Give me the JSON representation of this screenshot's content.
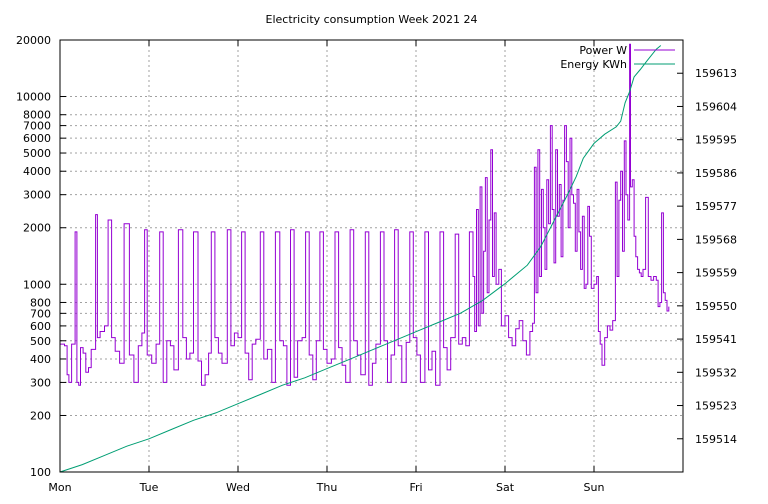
{
  "chart_data": {
    "type": "line",
    "title": "Electricity consumption Week 2021 24",
    "xlabel": "",
    "ylabel": "",
    "y2label": "",
    "grid": true,
    "legend_position": "top-right",
    "x_categories": [
      "Mon",
      "Tue",
      "Wed",
      "Thu",
      "Fri",
      "Sat",
      "Sun"
    ],
    "x_range_days": [
      0,
      7
    ],
    "y_scale": "log",
    "ylim": [
      100,
      20000
    ],
    "y_ticks": [
      100,
      200,
      300,
      400,
      500,
      600,
      700,
      800,
      1000,
      2000,
      3000,
      4000,
      5000,
      6000,
      7000,
      8000,
      10000,
      20000
    ],
    "y2_scale": "linear",
    "y2lim": [
      159505,
      159622
    ],
    "y2_ticks": [
      159514,
      159523,
      159532,
      159541,
      159550,
      159559,
      159568,
      159577,
      159586,
      159595,
      159604,
      159613
    ],
    "series": [
      {
        "name": "Power W",
        "axis": "y",
        "color": "#9400d3",
        "points": [
          [
            0.0,
            480
          ],
          [
            0.05,
            470
          ],
          [
            0.08,
            330
          ],
          [
            0.1,
            300
          ],
          [
            0.13,
            480
          ],
          [
            0.17,
            1900
          ],
          [
            0.19,
            300
          ],
          [
            0.21,
            290
          ],
          [
            0.23,
            460
          ],
          [
            0.26,
            430
          ],
          [
            0.29,
            340
          ],
          [
            0.32,
            360
          ],
          [
            0.35,
            450
          ],
          [
            0.4,
            2350
          ],
          [
            0.42,
            520
          ],
          [
            0.45,
            560
          ],
          [
            0.5,
            600
          ],
          [
            0.54,
            2200
          ],
          [
            0.58,
            520
          ],
          [
            0.62,
            440
          ],
          [
            0.67,
            380
          ],
          [
            0.72,
            2100
          ],
          [
            0.78,
            420
          ],
          [
            0.83,
            300
          ],
          [
            0.88,
            470
          ],
          [
            0.92,
            550
          ],
          [
            0.95,
            1950
          ],
          [
            0.98,
            420
          ],
          [
            1.03,
            380
          ],
          [
            1.08,
            480
          ],
          [
            1.12,
            1900
          ],
          [
            1.16,
            300
          ],
          [
            1.2,
            500
          ],
          [
            1.24,
            470
          ],
          [
            1.28,
            350
          ],
          [
            1.33,
            1950
          ],
          [
            1.38,
            520
          ],
          [
            1.42,
            400
          ],
          [
            1.46,
            430
          ],
          [
            1.5,
            1900
          ],
          [
            1.55,
            390
          ],
          [
            1.59,
            290
          ],
          [
            1.63,
            330
          ],
          [
            1.67,
            430
          ],
          [
            1.7,
            1900
          ],
          [
            1.74,
            520
          ],
          [
            1.78,
            430
          ],
          [
            1.82,
            380
          ],
          [
            1.88,
            1950
          ],
          [
            1.92,
            470
          ],
          [
            1.96,
            550
          ],
          [
            2.0,
            520
          ],
          [
            2.04,
            1900
          ],
          [
            2.08,
            430
          ],
          [
            2.12,
            310
          ],
          [
            2.16,
            480
          ],
          [
            2.2,
            510
          ],
          [
            2.25,
            1900
          ],
          [
            2.29,
            400
          ],
          [
            2.33,
            450
          ],
          [
            2.38,
            300
          ],
          [
            2.42,
            1900
          ],
          [
            2.47,
            500
          ],
          [
            2.51,
            470
          ],
          [
            2.55,
            290
          ],
          [
            2.59,
            1950
          ],
          [
            2.63,
            320
          ],
          [
            2.67,
            500
          ],
          [
            2.72,
            520
          ],
          [
            2.76,
            1900
          ],
          [
            2.8,
            420
          ],
          [
            2.84,
            310
          ],
          [
            2.88,
            500
          ],
          [
            2.92,
            1900
          ],
          [
            2.96,
            450
          ],
          [
            3.0,
            380
          ],
          [
            3.05,
            400
          ],
          [
            3.09,
            1900
          ],
          [
            3.13,
            460
          ],
          [
            3.17,
            370
          ],
          [
            3.21,
            300
          ],
          [
            3.26,
            1950
          ],
          [
            3.3,
            500
          ],
          [
            3.34,
            420
          ],
          [
            3.38,
            330
          ],
          [
            3.43,
            1900
          ],
          [
            3.47,
            290
          ],
          [
            3.51,
            380
          ],
          [
            3.55,
            480
          ],
          [
            3.6,
            1900
          ],
          [
            3.64,
            500
          ],
          [
            3.68,
            300
          ],
          [
            3.72,
            420
          ],
          [
            3.76,
            1950
          ],
          [
            3.8,
            470
          ],
          [
            3.84,
            300
          ],
          [
            3.89,
            490
          ],
          [
            3.93,
            1900
          ],
          [
            3.97,
            520
          ],
          [
            4.01,
            420
          ],
          [
            4.05,
            300
          ],
          [
            4.1,
            1900
          ],
          [
            4.14,
            350
          ],
          [
            4.18,
            440
          ],
          [
            4.22,
            290
          ],
          [
            4.27,
            1900
          ],
          [
            4.31,
            460
          ],
          [
            4.35,
            350
          ],
          [
            4.39,
            520
          ],
          [
            4.44,
            1850
          ],
          [
            4.48,
            480
          ],
          [
            4.52,
            520
          ],
          [
            4.56,
            470
          ],
          [
            4.6,
            1900
          ],
          [
            4.64,
            1100
          ],
          [
            4.66,
            560
          ],
          [
            4.68,
            2500
          ],
          [
            4.7,
            600
          ],
          [
            4.72,
            3300
          ],
          [
            4.74,
            700
          ],
          [
            4.76,
            1500
          ],
          [
            4.78,
            3700
          ],
          [
            4.8,
            900
          ],
          [
            4.82,
            2200
          ],
          [
            4.84,
            5200
          ],
          [
            4.86,
            1100
          ],
          [
            4.88,
            2400
          ],
          [
            4.9,
            1000
          ],
          [
            4.93,
            1200
          ],
          [
            4.96,
            600
          ],
          [
            5.0,
            680
          ],
          [
            5.04,
            520
          ],
          [
            5.08,
            470
          ],
          [
            5.12,
            580
          ],
          [
            5.16,
            640
          ],
          [
            5.2,
            500
          ],
          [
            5.24,
            420
          ],
          [
            5.28,
            560
          ],
          [
            5.31,
            620
          ],
          [
            5.33,
            4200
          ],
          [
            5.35,
            900
          ],
          [
            5.37,
            5200
          ],
          [
            5.39,
            1100
          ],
          [
            5.41,
            3200
          ],
          [
            5.43,
            2000
          ],
          [
            5.45,
            1200
          ],
          [
            5.47,
            3600
          ],
          [
            5.49,
            2100
          ],
          [
            5.51,
            7000
          ],
          [
            5.53,
            2500
          ],
          [
            5.55,
            1300
          ],
          [
            5.57,
            5200
          ],
          [
            5.59,
            2300
          ],
          [
            5.61,
            3400
          ],
          [
            5.63,
            1400
          ],
          [
            5.65,
            2800
          ],
          [
            5.67,
            7000
          ],
          [
            5.69,
            4500
          ],
          [
            5.71,
            2000
          ],
          [
            5.73,
            6000
          ],
          [
            5.75,
            3000
          ],
          [
            5.77,
            2700
          ],
          [
            5.79,
            1500
          ],
          [
            5.81,
            3200
          ],
          [
            5.83,
            1900
          ],
          [
            5.85,
            1200
          ],
          [
            5.87,
            2300
          ],
          [
            5.89,
            950
          ],
          [
            5.91,
            1000
          ],
          [
            5.93,
            2600
          ],
          [
            5.95,
            1800
          ],
          [
            5.97,
            950
          ],
          [
            6.0,
            1000
          ],
          [
            6.03,
            1100
          ],
          [
            6.05,
            560
          ],
          [
            6.07,
            480
          ],
          [
            6.09,
            370
          ],
          [
            6.12,
            520
          ],
          [
            6.15,
            600
          ],
          [
            6.18,
            570
          ],
          [
            6.21,
            640
          ],
          [
            6.24,
            3500
          ],
          [
            6.26,
            1100
          ],
          [
            6.28,
            2800
          ],
          [
            6.3,
            4000
          ],
          [
            6.32,
            1500
          ],
          [
            6.34,
            5800
          ],
          [
            6.36,
            3000
          ],
          [
            6.38,
            2200
          ],
          [
            6.4,
            19000
          ],
          [
            6.41,
            3300
          ],
          [
            6.43,
            3600
          ],
          [
            6.45,
            1800
          ],
          [
            6.47,
            1400
          ],
          [
            6.49,
            1200
          ],
          [
            6.51,
            1150
          ],
          [
            6.53,
            1100
          ],
          [
            6.55,
            1200
          ],
          [
            6.58,
            2900
          ],
          [
            6.61,
            1100
          ],
          [
            6.64,
            1050
          ],
          [
            6.67,
            1100
          ],
          [
            6.7,
            1050
          ],
          [
            6.72,
            760
          ],
          [
            6.74,
            800
          ],
          [
            6.76,
            2400
          ],
          [
            6.78,
            900
          ],
          [
            6.8,
            820
          ],
          [
            6.82,
            720
          ],
          [
            6.84,
            760
          ]
        ]
      },
      {
        "name": "Energy KWh",
        "axis": "y2",
        "color": "#009e73",
        "points": [
          [
            0.0,
            159505.0
          ],
          [
            0.25,
            159507.0
          ],
          [
            0.5,
            159509.5
          ],
          [
            0.75,
            159512.0
          ],
          [
            1.0,
            159514.0
          ],
          [
            1.25,
            159516.5
          ],
          [
            1.5,
            159519.0
          ],
          [
            1.75,
            159521.0
          ],
          [
            2.0,
            159523.5
          ],
          [
            2.25,
            159526.0
          ],
          [
            2.5,
            159528.5
          ],
          [
            2.75,
            159530.5
          ],
          [
            3.0,
            159533.0
          ],
          [
            3.25,
            159535.5
          ],
          [
            3.5,
            159538.0
          ],
          [
            3.75,
            159540.5
          ],
          [
            4.0,
            159543.0
          ],
          [
            4.25,
            159545.5
          ],
          [
            4.5,
            159548.0
          ],
          [
            4.75,
            159551.5
          ],
          [
            5.0,
            159556.0
          ],
          [
            5.25,
            159561.0
          ],
          [
            5.4,
            159566.0
          ],
          [
            5.55,
            159573.0
          ],
          [
            5.7,
            159580.0
          ],
          [
            5.8,
            159585.0
          ],
          [
            5.88,
            159590.0
          ],
          [
            6.0,
            159594.0
          ],
          [
            6.12,
            159596.5
          ],
          [
            6.25,
            159598.5
          ],
          [
            6.3,
            159600.0
          ],
          [
            6.35,
            159605.0
          ],
          [
            6.4,
            159608.0
          ],
          [
            6.45,
            159612.0
          ],
          [
            6.52,
            159614.0
          ],
          [
            6.6,
            159616.5
          ],
          [
            6.7,
            159619.5
          ],
          [
            6.75,
            159620.5
          ]
        ]
      }
    ]
  }
}
